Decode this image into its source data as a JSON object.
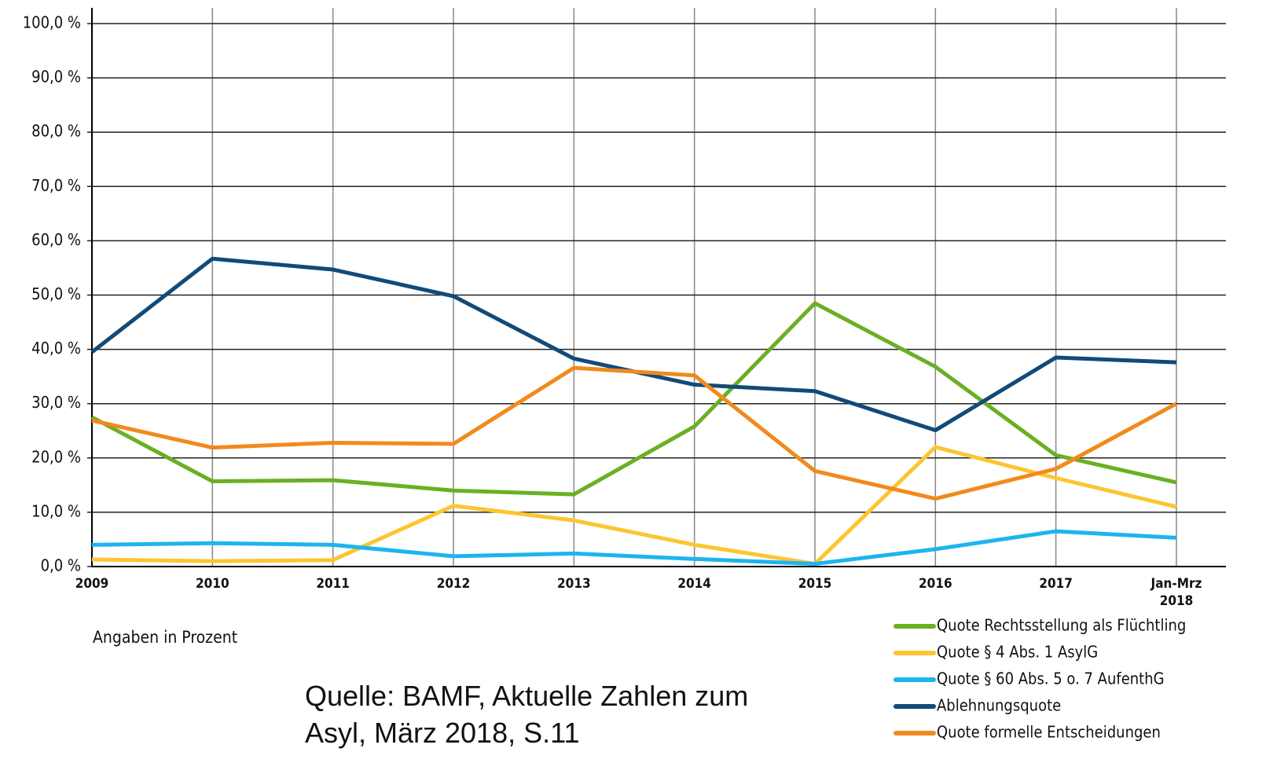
{
  "chart_data": {
    "type": "line",
    "categories": [
      "2009",
      "2010",
      "2011",
      "2012",
      "2013",
      "2014",
      "2015",
      "2016",
      "2017",
      "Jan-Mrz 2018"
    ],
    "series": [
      {
        "name": "Quote Rechtsstellung als Flüchtling",
        "color": "#6ab023",
        "values": [
          27.5,
          15.7,
          15.9,
          14.0,
          13.3,
          25.8,
          48.5,
          36.8,
          20.5,
          15.5
        ]
      },
      {
        "name": "Quote § 4 Abs. 1 AsylG",
        "color": "#fcc631",
        "values": [
          1.3,
          1.0,
          1.2,
          11.2,
          8.5,
          4.0,
          0.5,
          22.0,
          16.3,
          11.0
        ]
      },
      {
        "name": "Quote § 60 Abs. 5 o. 7 AufenthG",
        "color": "#1eb4ee",
        "values": [
          4.0,
          4.3,
          4.0,
          1.9,
          2.4,
          1.4,
          0.5,
          3.2,
          6.5,
          5.3
        ]
      },
      {
        "name": "Ablehnungsquote",
        "color": "#124a78",
        "values": [
          39.5,
          56.7,
          54.7,
          49.8,
          38.3,
          33.5,
          32.3,
          25.1,
          38.5,
          37.6
        ]
      },
      {
        "name": "Quote formelle Entscheidungen",
        "color": "#f18a1c",
        "values": [
          26.9,
          21.9,
          22.8,
          22.6,
          36.6,
          35.2,
          17.6,
          12.5,
          18.0,
          30.0
        ]
      }
    ],
    "ylim": [
      0,
      100
    ],
    "yticks": [
      {
        "value": 0,
        "label": "0,0 %"
      },
      {
        "value": 10,
        "label": "10,0 %"
      },
      {
        "value": 20,
        "label": "20,0 %"
      },
      {
        "value": 30,
        "label": "30,0 %"
      },
      {
        "value": 40,
        "label": "40,0 %"
      },
      {
        "value": 50,
        "label": "50,0 %"
      },
      {
        "value": 60,
        "label": "60,0 %"
      },
      {
        "value": 70,
        "label": "70,0 %"
      },
      {
        "value": 80,
        "label": "80,0 %"
      },
      {
        "value": 90,
        "label": "90,0 %"
      },
      {
        "value": 100,
        "label": "100,0 %"
      }
    ],
    "unit_note": "Angaben in Prozent",
    "source": "Quelle: BAMF, Aktuelle Zahlen zum Asyl, März 2018, S.11",
    "grid": true
  }
}
